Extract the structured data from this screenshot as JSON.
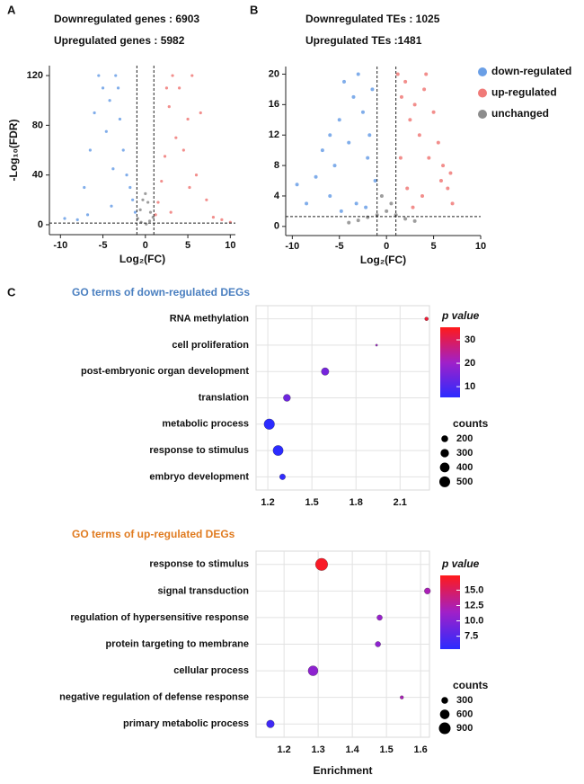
{
  "chart_data": [
    {
      "type": "scatter",
      "panel": "A",
      "annotations": [
        "Downregulated genes : 6903",
        "Upregulated genes : 5982"
      ],
      "xlabel": "Log₂(FC)",
      "ylabel": "-Log₁₀(FDR)",
      "xlim": [
        -11.3,
        10.6
      ],
      "ylim": [
        -8,
        128
      ],
      "xticks": [
        -10,
        -5,
        0,
        5,
        10
      ],
      "yticks": [
        0,
        40,
        80,
        120
      ],
      "thresholds": {
        "x": [
          -1,
          1
        ],
        "y": 1.3
      },
      "series": [
        {
          "color": "#6a9fe6",
          "x": [
            -9.5,
            -8,
            -7.2,
            -6.5,
            -6,
            -5.5,
            -5,
            -4.6,
            -4.2,
            -3.8,
            -3.5,
            -3,
            -2.6,
            -2.2,
            -1.8,
            -1.5,
            -1.2,
            -4,
            -6.8,
            -3.2
          ],
          "y": [
            5,
            4,
            30,
            60,
            90,
            120,
            110,
            75,
            100,
            45,
            120,
            85,
            60,
            40,
            30,
            20,
            10,
            15,
            8,
            110
          ]
        },
        {
          "color": "#f07a78",
          "x": [
            1.2,
            1.5,
            1.9,
            2.3,
            2.8,
            3.2,
            3.6,
            4,
            4.5,
            5,
            5.5,
            6,
            6.5,
            7.2,
            8,
            9,
            10,
            3,
            5.2,
            2.5
          ],
          "y": [
            8,
            18,
            35,
            55,
            95,
            120,
            70,
            110,
            60,
            85,
            120,
            40,
            90,
            20,
            6,
            4,
            2,
            10,
            30,
            110
          ]
        },
        {
          "color": "#8c8c8c",
          "x": [
            -0.9,
            -0.6,
            -0.3,
            0,
            0.3,
            0.6,
            0.9,
            -0.5,
            0.5,
            0.1
          ],
          "y": [
            5,
            12,
            20,
            25,
            18,
            10,
            6,
            2,
            3,
            0.5
          ]
        }
      ]
    },
    {
      "type": "scatter",
      "panel": "B",
      "annotations": [
        "Downregulated TEs : 1025",
        "Upregulated TEs :1481"
      ],
      "xlabel": "Log₂(FC)",
      "xlim": [
        -10.7,
        10
      ],
      "ylim": [
        -1.2,
        21
      ],
      "xticks": [
        -10,
        -5,
        0,
        5,
        10
      ],
      "yticks": [
        0,
        4,
        8,
        12,
        16,
        20
      ],
      "thresholds": {
        "x": [
          -1,
          1
        ],
        "y": 1.3
      },
      "series": [
        {
          "name": "down-regulated",
          "color": "#6a9fe6",
          "x": [
            -9.5,
            -8.5,
            -7.5,
            -6.8,
            -6,
            -5.5,
            -5,
            -4.5,
            -4,
            -3.5,
            -3,
            -2.5,
            -2,
            -1.5,
            -1.2,
            -6,
            -3.2,
            -2.2,
            -4.8,
            -1.8
          ],
          "y": [
            5.5,
            3,
            6.5,
            10,
            12,
            8,
            14,
            19,
            11,
            17,
            20,
            15,
            9,
            18,
            6,
            4,
            3,
            2.5,
            2,
            12
          ]
        },
        {
          "name": "up-regulated",
          "color": "#f07a78",
          "x": [
            1.2,
            1.6,
            2,
            2.5,
            3,
            3.5,
            4,
            4.5,
            5,
            5.5,
            6,
            6.5,
            7,
            2.2,
            3.8,
            1.5,
            5.8,
            4.2,
            2.8,
            6.8
          ],
          "y": [
            20,
            17,
            19,
            14,
            16,
            12,
            18,
            9,
            15,
            11,
            8,
            5,
            3,
            5,
            4,
            9,
            6,
            20,
            2.5,
            7
          ]
        },
        {
          "name": "unchanged",
          "color": "#8c8c8c",
          "x": [
            -4,
            -3,
            -2,
            -1,
            0,
            1,
            2,
            3,
            -0.5,
            0.5
          ],
          "y": [
            0.5,
            0.8,
            1.2,
            1.5,
            2,
            1.5,
            1,
            0.7,
            4,
            3
          ]
        }
      ]
    },
    {
      "type": "bubble",
      "panel": "C",
      "title": "GO terms of down-regulated DEGs",
      "title_color": "#4a7fc0",
      "categories": [
        "RNA methylation",
        "cell proliferation",
        "post-embryonic organ development",
        "translation",
        "metabolic process",
        "response to stimulus",
        "embryo development"
      ],
      "x": [
        2.28,
        1.94,
        1.59,
        1.33,
        1.21,
        1.27,
        1.3
      ],
      "counts": [
        60,
        20,
        250,
        220,
        480,
        450,
        150
      ],
      "p_values": [
        33,
        20,
        15,
        14,
        5,
        5,
        6
      ],
      "xlim": [
        1.12,
        2.3
      ],
      "xticks": [
        1.2,
        1.5,
        1.8,
        2.1
      ],
      "colorbar": {
        "title": "p value",
        "lim": [
          5.4,
          35.4
        ],
        "ticks": [
          10,
          20,
          30
        ],
        "colors": [
          "#2b2bff",
          "#a020c8",
          "#ff1a1a"
        ]
      },
      "size_legend": {
        "title": "counts",
        "values": [
          200,
          300,
          400,
          500
        ]
      }
    },
    {
      "type": "bubble",
      "title": "GO terms of up-regulated DEGs",
      "title_color": "#e07b20",
      "xlabel": "Enrichment",
      "categories": [
        "response to stimulus",
        "signal transduction",
        "regulation of hypersensitive response",
        "protein targeting to membrane",
        "cellular process",
        "negative regulation of defense response",
        "primary metabolic process"
      ],
      "x": [
        1.31,
        1.62,
        1.48,
        1.475,
        1.285,
        1.545,
        1.16
      ],
      "counts": [
        1000,
        250,
        200,
        200,
        650,
        80,
        400
      ],
      "p_values": [
        17,
        12,
        11,
        10.5,
        10.5,
        12,
        6.5
      ],
      "xlim": [
        1.118,
        1.626
      ],
      "xticks": [
        {
          "value": 1.2,
          "label": "1.2"
        },
        {
          "value": 1.3,
          "label": "1.3"
        },
        {
          "value": 1.4,
          "label": "1.4"
        },
        {
          "value": 1.5,
          "label": "1.5"
        },
        {
          "value": 1.6,
          "label": "1.6"
        }
      ],
      "colorbar": {
        "title": "p value",
        "lim": [
          5.4,
          17.4
        ],
        "ticks": [
          {
            "value": 15,
            "label": "15.0"
          },
          {
            "value": 12.5,
            "label": "12.5"
          },
          {
            "value": 10,
            "label": "10.0"
          },
          {
            "value": 7.5,
            "label": "7.5"
          }
        ],
        "colors": [
          "#2b2bff",
          "#a020c8",
          "#ff1a1a"
        ]
      },
      "size_legend": {
        "title": "counts",
        "values": [
          300,
          600,
          900
        ]
      }
    }
  ]
}
